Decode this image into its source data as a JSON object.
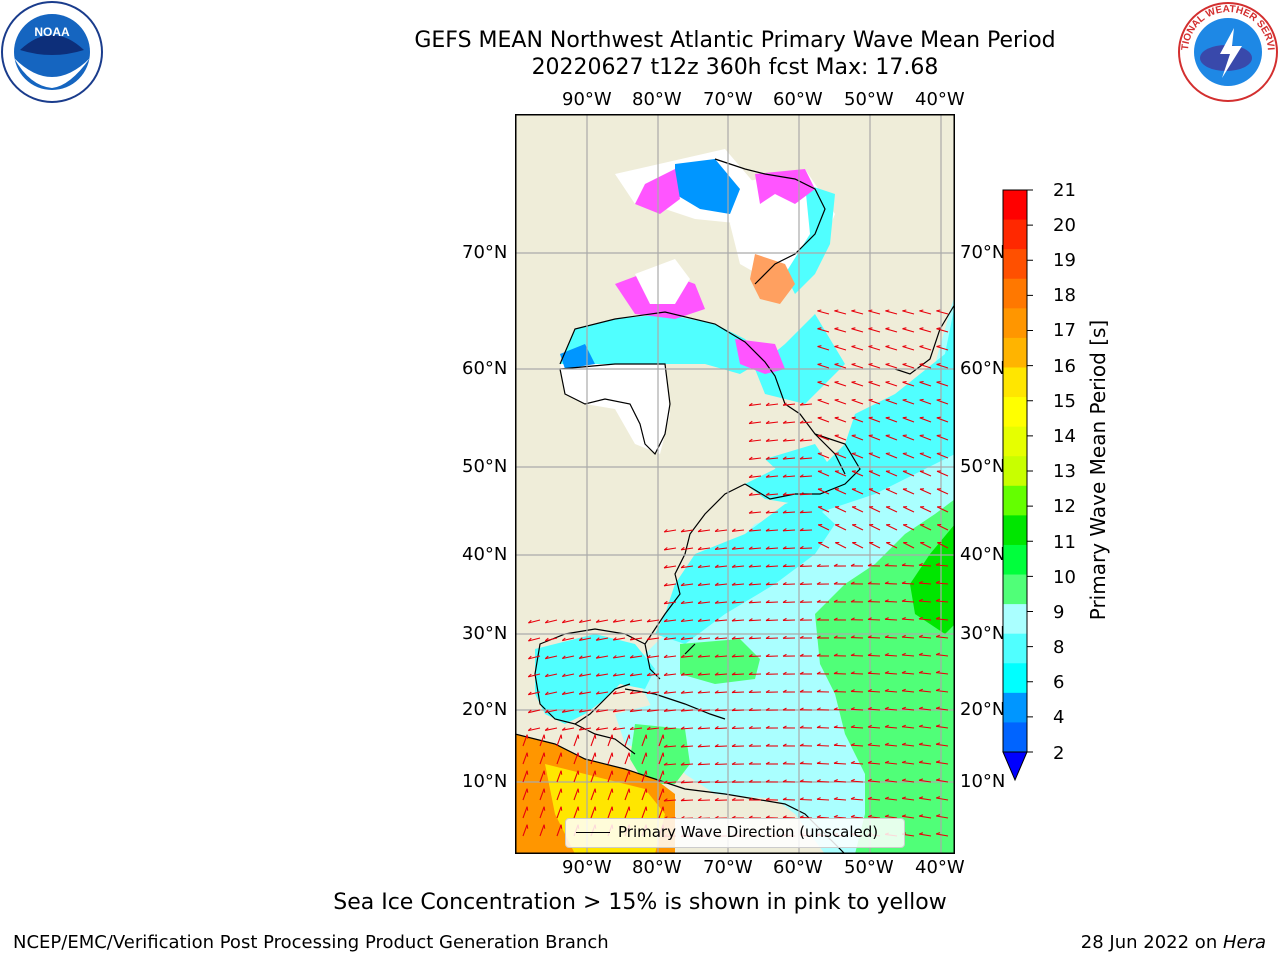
{
  "header": {
    "title": "GEFS MEAN Northwest Atlantic Primary Wave Mean Period",
    "subtitle": "20220627 t12z 360h fcst   Max: 17.68"
  },
  "logos": {
    "noaa": "NOAA",
    "nws": "NATIONAL WEATHER SERVICE"
  },
  "map": {
    "lon_labels": [
      "90°W",
      "80°W",
      "70°W",
      "60°W",
      "50°W",
      "40°W"
    ],
    "lat_labels": [
      "70°N",
      "60°N",
      "50°N",
      "40°N",
      "30°N",
      "20°N",
      "10°N"
    ],
    "legend_label": "Primary Wave Direction (unscaled)",
    "colors": {
      "land": "#efedd9",
      "ice_land": "#ffffff",
      "coast": "#000000",
      "grid": "#aaaaaa",
      "arrow": "#e8000b"
    }
  },
  "colorbar": {
    "label": "Primary Wave Mean Period [s]",
    "ticks": [
      "21",
      "20",
      "19",
      "18",
      "17",
      "16",
      "15",
      "14",
      "13",
      "12",
      "11",
      "10",
      "9",
      "8",
      "6",
      "4",
      "2"
    ],
    "colors": [
      "#ff0000",
      "#ff2800",
      "#ff5000",
      "#ff7800",
      "#ff9600",
      "#ffb400",
      "#ffe600",
      "#ffff00",
      "#e6ff00",
      "#c8ff00",
      "#64ff00",
      "#00e600",
      "#00ff3c",
      "#50ff78",
      "#aaffff",
      "#50ffff",
      "#00ffff",
      "#0096ff",
      "#0064ff"
    ],
    "under_color": "#0000ff"
  },
  "footer": {
    "note": "Sea Ice Concentration > 15% is shown in pink to yellow",
    "credit": "NCEP/EMC/Verification Post Processing Product Generation Branch",
    "date": "28 Jun 2022 on ",
    "machine": "Hera"
  }
}
